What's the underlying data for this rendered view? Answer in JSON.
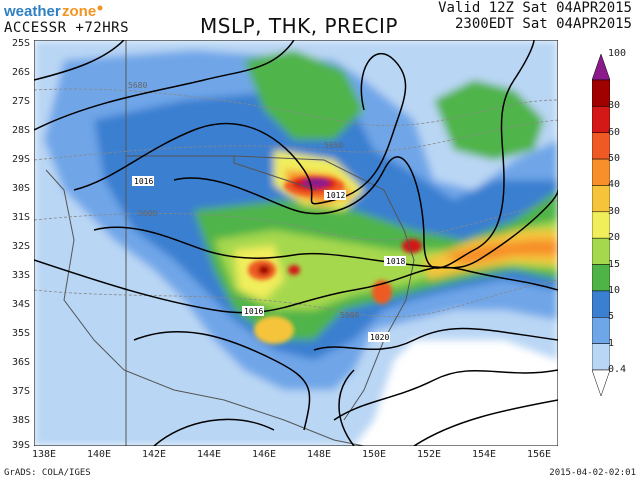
{
  "header": {
    "logo_text": "weatherzone",
    "model_label": "ACCESSR +72HRS",
    "title": "MSLP, THK, PRECIP",
    "valid_line1": "Valid 12Z Sat 04APR2015",
    "valid_line2": "2300EDT Sat 04APR2015"
  },
  "axes": {
    "latitudes": [
      "25S",
      "26S",
      "27S",
      "28S",
      "29S",
      "30S",
      "31S",
      "32S",
      "33S",
      "34S",
      "35S",
      "36S",
      "37S",
      "38S",
      "39S"
    ],
    "longitudes": [
      "138E",
      "140E",
      "142E",
      "144E",
      "146E",
      "148E",
      "150E",
      "152E",
      "154E",
      "156E"
    ]
  },
  "isobars": [
    {
      "label": "1016",
      "lat": "30S",
      "lon": "140E"
    },
    {
      "label": "1012",
      "lat": "30S",
      "lon": "148E"
    },
    {
      "label": "1018",
      "lat": "33S",
      "lon": "151E"
    },
    {
      "label": "1016",
      "lat": "34S",
      "lon": "144E"
    },
    {
      "label": "1020",
      "lat": "35S",
      "lon": "150E"
    }
  ],
  "thickness": [
    {
      "label": "5680",
      "lat": "27S",
      "lon": "140E"
    },
    {
      "label": "5650",
      "lat": "29S",
      "lon": "148E"
    },
    {
      "label": "5600",
      "lat": "31S",
      "lon": "141E"
    },
    {
      "label": "5600",
      "lat": "34S",
      "lon": "148E"
    }
  ],
  "colorbar": {
    "labels": [
      "100",
      "80",
      "60",
      "50",
      "40",
      "30",
      "20",
      "15",
      "10",
      "5",
      "1",
      "0.4"
    ],
    "colors": [
      "#8b1a8b",
      "#a00000",
      "#d41818",
      "#ef5a24",
      "#f78f2a",
      "#f5c43a",
      "#f1ee5b",
      "#a6d84e",
      "#4fb448",
      "#3a7fd0",
      "#6fa6e8",
      "#b9d6f4"
    ]
  },
  "footer": {
    "left": "GrADS: COLA/IGES",
    "right": "2015-04-02-02:01"
  }
}
